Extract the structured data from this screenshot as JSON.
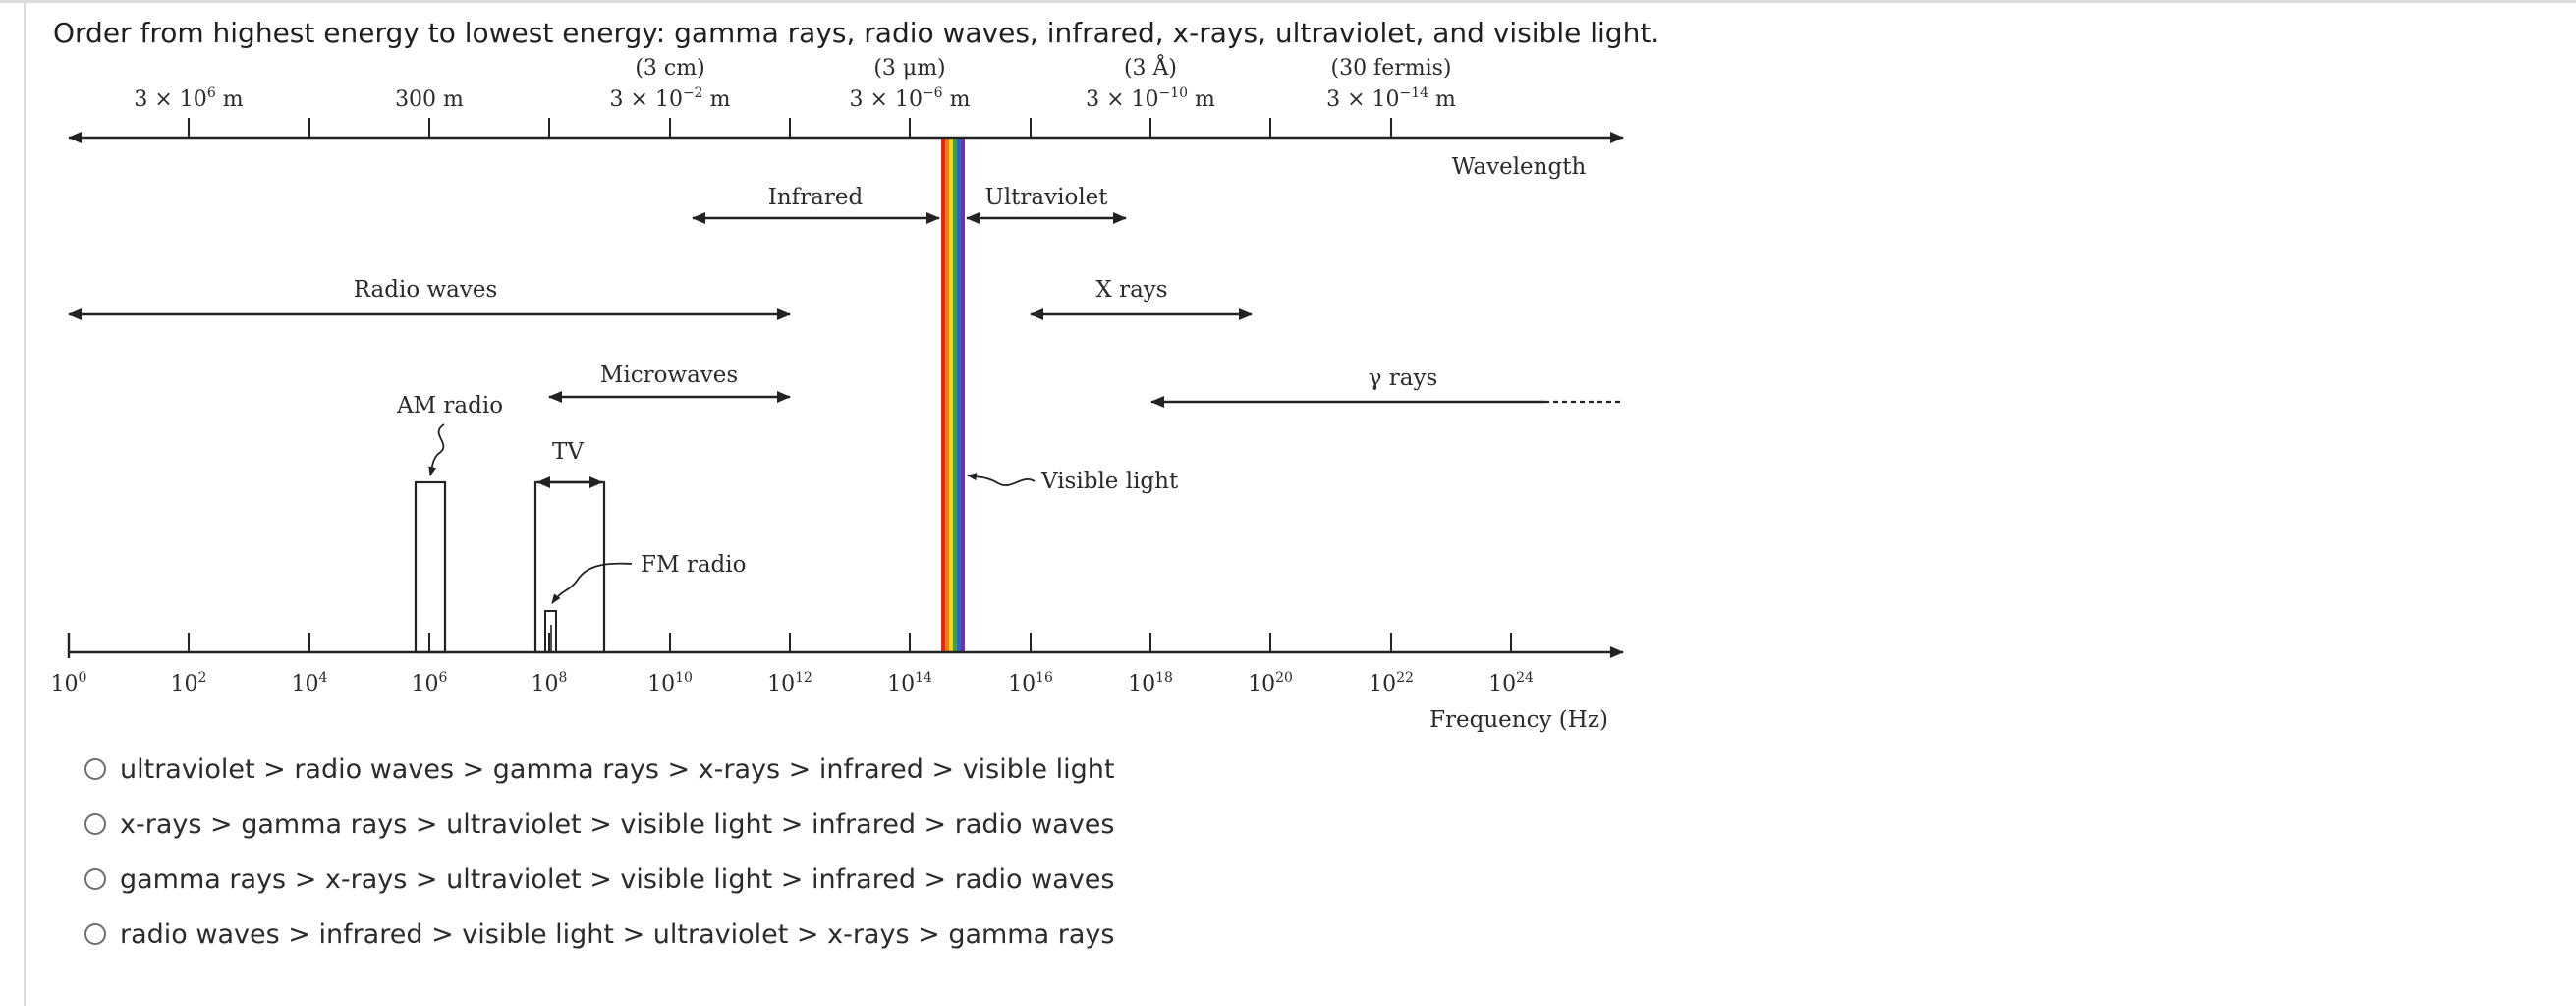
{
  "question": "Order from highest energy to lowest energy: gamma rays, radio waves, infrared, x-rays, ultraviolet, and visible light.",
  "diagram": {
    "wavelength_axis": {
      "title": "Wavelength",
      "tick_labels": [
        {
          "value": "3 × 10",
          "exp": "6",
          "unit": " m",
          "note": ""
        },
        {
          "value": "300 m",
          "exp": "",
          "unit": "",
          "note": ""
        },
        {
          "value": "3 × 10",
          "exp": "−2",
          "unit": " m",
          "note": "(3 cm)"
        },
        {
          "value": "3 × 10",
          "exp": "−6",
          "unit": " m",
          "note": "(3 μm)"
        },
        {
          "value": "3 × 10",
          "exp": "−10",
          "unit": " m",
          "note": "(3 Å)"
        },
        {
          "value": "3 × 10",
          "exp": "−14",
          "unit": " m",
          "note": "(30 fermis)"
        }
      ]
    },
    "frequency_axis": {
      "title": "Frequency (Hz)",
      "tick_labels": [
        {
          "base": "10",
          "exp": "0"
        },
        {
          "base": "10",
          "exp": "2"
        },
        {
          "base": "10",
          "exp": "4"
        },
        {
          "base": "10",
          "exp": "6"
        },
        {
          "base": "10",
          "exp": "8"
        },
        {
          "base": "10",
          "exp": "10"
        },
        {
          "base": "10",
          "exp": "12"
        },
        {
          "base": "10",
          "exp": "14"
        },
        {
          "base": "10",
          "exp": "16"
        },
        {
          "base": "10",
          "exp": "18"
        },
        {
          "base": "10",
          "exp": "20"
        },
        {
          "base": "10",
          "exp": "22"
        },
        {
          "base": "10",
          "exp": "24"
        }
      ]
    },
    "bands": {
      "infrared": "Infrared",
      "ultraviolet": "Ultraviolet",
      "radio_waves": "Radio waves",
      "x_rays": "X rays",
      "microwaves": "Microwaves",
      "gamma_rays": "γ rays",
      "am_radio": "AM radio",
      "tv": "TV",
      "fm_radio": "FM radio",
      "visible_light": "Visible light"
    },
    "spectrum_colors": [
      "#e02a1d",
      "#f07a1a",
      "#f2d22a",
      "#3fa53a",
      "#2f63c8",
      "#6a35a8"
    ]
  },
  "options": [
    {
      "label": "ultraviolet > radio waves > gamma rays > x-rays > infrared > visible light"
    },
    {
      "label": "x-rays > gamma rays > ultraviolet > visible light > infrared > radio waves"
    },
    {
      "label": "gamma rays > x-rays > ultraviolet > visible light > infrared > radio waves"
    },
    {
      "label": "radio waves > infrared > visible light > ultraviolet > x-rays > gamma rays"
    }
  ]
}
